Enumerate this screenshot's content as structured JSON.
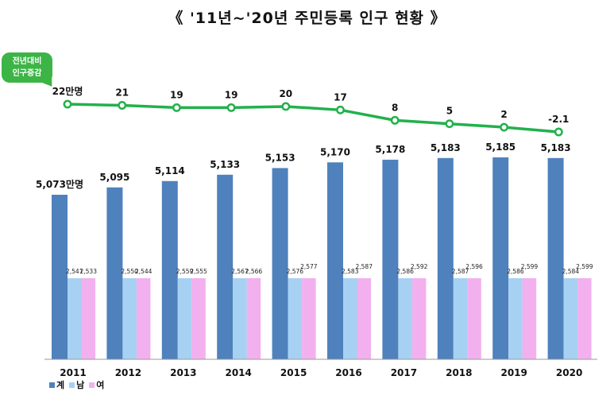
{
  "title": "《 '11년~'20년 주민등록 인구 현황 》",
  "badge": {
    "line1": "전년대비",
    "line2": "인구증감"
  },
  "colors": {
    "total": "#4f81bd",
    "male": "#a7d1f3",
    "female": "#f2b0ee",
    "line": "#22b14c"
  },
  "chart_data": [
    {
      "type": "line",
      "x": [
        "2011",
        "2012",
        "2013",
        "2014",
        "2015",
        "2016",
        "2017",
        "2018",
        "2019",
        "2020"
      ],
      "values": [
        22,
        21,
        19,
        19,
        20,
        17,
        8,
        5,
        2,
        -2.1
      ],
      "labels": [
        "22만명",
        "21",
        "19",
        "19",
        "20",
        "17",
        "8",
        "5",
        "2",
        "-2.1"
      ]
    },
    {
      "type": "bar",
      "categories": [
        "2011",
        "2012",
        "2013",
        "2014",
        "2015",
        "2016",
        "2017",
        "2018",
        "2019",
        "2020"
      ],
      "series": [
        {
          "name": "계",
          "values": [
            5073,
            5095,
            5114,
            5133,
            5153,
            5170,
            5178,
            5183,
            5185,
            5183
          ],
          "labels": [
            "5,073만명",
            "5,095",
            "5,114",
            "5,133",
            "5,153",
            "5,170",
            "5,178",
            "5,183",
            "5,185",
            "5,183"
          ]
        },
        {
          "name": "남",
          "values": [
            2541,
            2550,
            2559,
            2567,
            2576,
            2583,
            2586,
            2587,
            2586,
            2584
          ],
          "labels": [
            "2,541",
            "2,550",
            "2,559",
            "2,567",
            "2,576",
            "2,583",
            "2,586",
            "2,587",
            "2,586",
            "2,584"
          ]
        },
        {
          "name": "여",
          "values": [
            2533,
            2544,
            2555,
            2566,
            2577,
            2587,
            2592,
            2596,
            2599,
            2599
          ],
          "labels": [
            "2,533",
            "2,544",
            "2,555",
            "2,566",
            "2,577",
            "2,587",
            "2,592",
            "2,596",
            "2,599",
            "2,599"
          ]
        }
      ]
    }
  ]
}
